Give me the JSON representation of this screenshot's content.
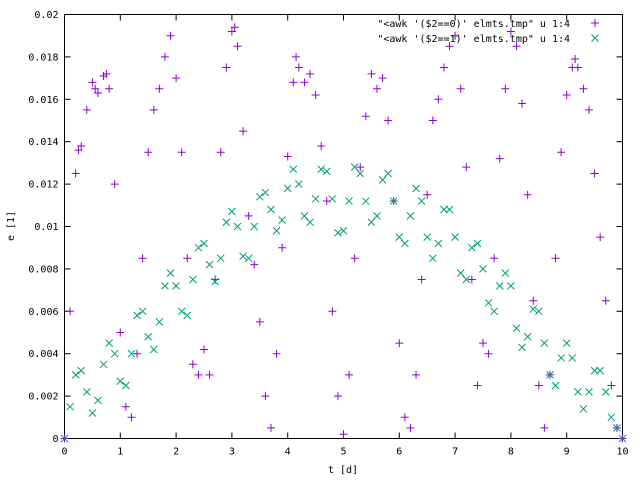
{
  "chart_data": {
    "type": "scatter",
    "xlabel": "t [d]",
    "ylabel": "e [1]",
    "xlim": [
      0,
      10
    ],
    "ylim": [
      0,
      0.02
    ],
    "xticks": [
      0,
      1,
      2,
      3,
      4,
      5,
      6,
      7,
      8,
      9,
      10
    ],
    "xtick_labels": [
      "0",
      "1",
      "2",
      "3",
      "4",
      "5",
      "6",
      "7",
      "8",
      "9",
      "10"
    ],
    "yticks": [
      0,
      0.002,
      0.004,
      0.006,
      0.008,
      0.01,
      0.012,
      0.014,
      0.016,
      0.018,
      0.02
    ],
    "ytick_labels": [
      "0",
      "0.002",
      "0.004",
      "0.006",
      "0.008",
      "0.01",
      "0.012",
      "0.014",
      "0.016",
      "0.018",
      "0.02"
    ],
    "grid": false,
    "legend_position": "top-right",
    "series": [
      {
        "name": "\"<awk '($2==0)' elmts.tmp\" u 1:4",
        "marker": "plus",
        "color": "#9400d3",
        "x": [
          0,
          0.1,
          0.2,
          0.25,
          0.3,
          0.4,
          0.5,
          0.55,
          0.6,
          0.7,
          0.75,
          0.8,
          0.9,
          1.0,
          1.1,
          1.2,
          1.3,
          1.4,
          1.5,
          1.6,
          1.7,
          1.8,
          1.9,
          2.0,
          2.1,
          2.2,
          2.3,
          2.4,
          2.5,
          2.6,
          2.7,
          2.8,
          2.9,
          3.0,
          3.05,
          3.1,
          3.2,
          3.3,
          3.4,
          3.5,
          3.6,
          3.7,
          3.8,
          3.9,
          4.0,
          4.1,
          4.15,
          4.2,
          4.3,
          4.4,
          4.5,
          4.6,
          4.7,
          4.8,
          4.9,
          5.0,
          5.1,
          5.2,
          5.3,
          5.4,
          5.5,
          5.6,
          5.7,
          5.8,
          5.9,
          6.0,
          6.1,
          6.2,
          6.3,
          6.4,
          6.5,
          6.6,
          6.7,
          6.8,
          6.9,
          7.0,
          7.1,
          7.2,
          7.3,
          7.4,
          7.5,
          7.6,
          7.7,
          7.8,
          7.9,
          8.0,
          8.1,
          8.2,
          8.3,
          8.4,
          8.5,
          8.6,
          8.7,
          8.8,
          8.9,
          9.0,
          9.1,
          9.15,
          9.2,
          9.3,
          9.4,
          9.5,
          9.6,
          9.7,
          9.8,
          9.9,
          10.0
        ],
        "y": [
          0,
          0.006,
          0.0125,
          0.0136,
          0.0138,
          0.0155,
          0.0168,
          0.0165,
          0.0163,
          0.0171,
          0.0172,
          0.0165,
          0.012,
          0.005,
          0.0015,
          0.001,
          0.004,
          0.0085,
          0.0135,
          0.0155,
          0.0165,
          0.018,
          0.019,
          0.017,
          0.0135,
          0.0085,
          0.0035,
          0.003,
          0.0042,
          0.003,
          0.0075,
          0.0135,
          0.0175,
          0.0192,
          0.0194,
          0.0185,
          0.0145,
          0.0105,
          0.0082,
          0.0055,
          0.002,
          0.0005,
          0.004,
          0.009,
          0.0133,
          0.0168,
          0.018,
          0.0175,
          0.0168,
          0.0172,
          0.0162,
          0.0138,
          0.0112,
          0.006,
          0.002,
          0.0002,
          0.003,
          0.0085,
          0.0128,
          0.0152,
          0.0172,
          0.0165,
          0.017,
          0.015,
          0.0112,
          0.0045,
          0.001,
          0.0005,
          0.003,
          0.0075,
          0.0115,
          0.015,
          0.016,
          0.0175,
          0.0185,
          0.019,
          0.0165,
          0.0128,
          0.0075,
          0.0025,
          0.0045,
          0.004,
          0.0085,
          0.0132,
          0.0165,
          0.0192,
          0.0185,
          0.0158,
          0.0115,
          0.0065,
          0.0025,
          0.0005,
          0.003,
          0.0085,
          0.0135,
          0.0162,
          0.0175,
          0.0179,
          0.0175,
          0.0165,
          0.0155,
          0.0125,
          0.0095,
          0.0065,
          0.0025,
          0.0005,
          0
        ]
      },
      {
        "name": "\"<awk '($2==1)' elmts.tmp\" u 1:4",
        "marker": "cross",
        "color": "#009e73",
        "x": [
          0,
          0.1,
          0.2,
          0.3,
          0.4,
          0.5,
          0.6,
          0.7,
          0.8,
          0.9,
          1.0,
          1.1,
          1.2,
          1.3,
          1.4,
          1.5,
          1.6,
          1.7,
          1.8,
          1.9,
          2.0,
          2.1,
          2.2,
          2.3,
          2.4,
          2.5,
          2.6,
          2.7,
          2.8,
          2.9,
          3.0,
          3.1,
          3.2,
          3.3,
          3.4,
          3.5,
          3.6,
          3.7,
          3.8,
          3.9,
          4.0,
          4.1,
          4.2,
          4.3,
          4.4,
          4.5,
          4.6,
          4.7,
          4.8,
          4.9,
          5.0,
          5.1,
          5.2,
          5.3,
          5.4,
          5.5,
          5.6,
          5.7,
          5.8,
          5.9,
          6.0,
          6.1,
          6.2,
          6.3,
          6.4,
          6.5,
          6.6,
          6.7,
          6.8,
          6.9,
          7.0,
          7.1,
          7.2,
          7.3,
          7.4,
          7.5,
          7.6,
          7.7,
          7.8,
          7.9,
          8.0,
          8.1,
          8.2,
          8.3,
          8.4,
          8.5,
          8.6,
          8.7,
          8.8,
          8.9,
          9.0,
          9.1,
          9.2,
          9.3,
          9.4,
          9.5,
          9.6,
          9.7,
          9.8,
          9.9,
          10.0
        ],
        "y": [
          0,
          0.0015,
          0.003,
          0.0032,
          0.0022,
          0.0012,
          0.0018,
          0.0035,
          0.0045,
          0.004,
          0.0027,
          0.0025,
          0.004,
          0.0058,
          0.006,
          0.0048,
          0.0042,
          0.0055,
          0.0072,
          0.0078,
          0.0072,
          0.006,
          0.0058,
          0.0075,
          0.009,
          0.0092,
          0.0082,
          0.0074,
          0.0085,
          0.0102,
          0.0107,
          0.01,
          0.0086,
          0.0085,
          0.01,
          0.0114,
          0.0116,
          0.0108,
          0.0098,
          0.0103,
          0.0118,
          0.0127,
          0.012,
          0.0105,
          0.0102,
          0.0113,
          0.0127,
          0.0126,
          0.0113,
          0.0097,
          0.0098,
          0.0112,
          0.0128,
          0.0125,
          0.0112,
          0.0102,
          0.0105,
          0.0122,
          0.0125,
          0.0112,
          0.0095,
          0.0092,
          0.0105,
          0.0118,
          0.0112,
          0.0095,
          0.0085,
          0.0092,
          0.0108,
          0.0108,
          0.0095,
          0.0078,
          0.0075,
          0.009,
          0.0092,
          0.008,
          0.0064,
          0.006,
          0.0072,
          0.0078,
          0.0072,
          0.0052,
          0.0043,
          0.0048,
          0.0061,
          0.006,
          0.0045,
          0.003,
          0.0025,
          0.0038,
          0.0045,
          0.0038,
          0.0022,
          0.0014,
          0.0022,
          0.0032,
          0.0032,
          0.0022,
          0.001,
          0.0005,
          0
        ]
      }
    ]
  }
}
